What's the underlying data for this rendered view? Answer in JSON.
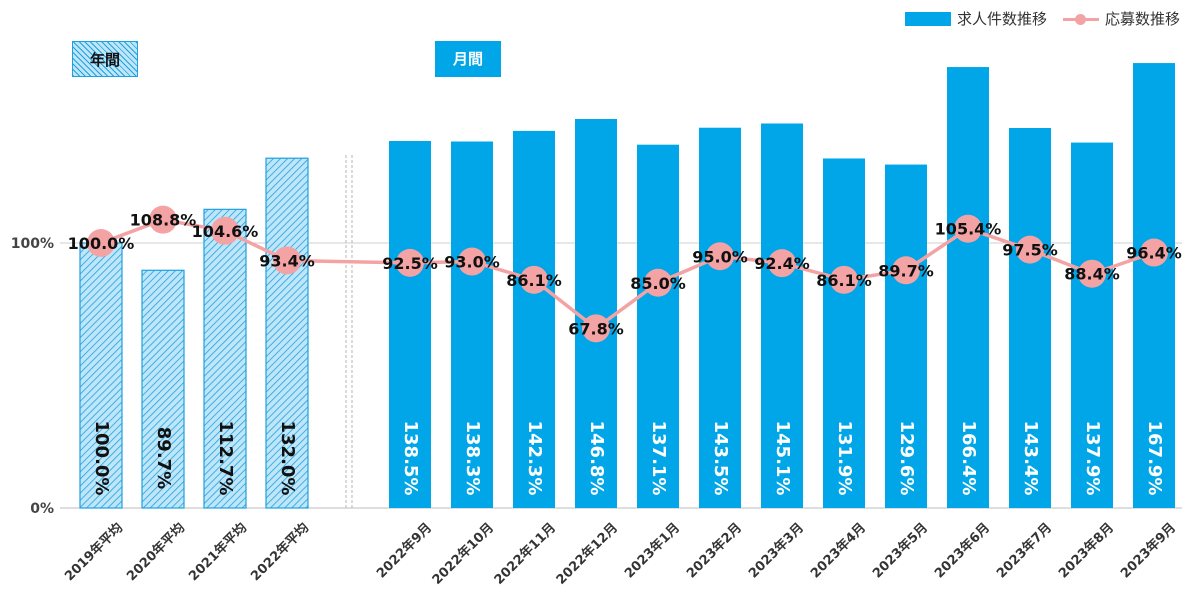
{
  "labels": {
    "annual": "年間",
    "monthly": "月間"
  },
  "legend": {
    "jobs": "求人件数推移",
    "applicants": "応募数推移"
  },
  "colors": {
    "bar": "#00a6e8",
    "hatch": "#1da1e0",
    "line": "#f4a3a5",
    "text": "#111111"
  },
  "chart_data": {
    "type": "bar",
    "categories": [
      "2019年平均",
      "2020年平均",
      "2021年平均",
      "2022年平均",
      "2022年9月",
      "2022年10月",
      "2022年11月",
      "2022年12月",
      "2023年1月",
      "2023年2月",
      "2023年3月",
      "2023年4月",
      "2023年5月",
      "2023年6月",
      "2023年7月",
      "2023年8月",
      "2023年9月"
    ],
    "series": [
      {
        "name": "求人件数推移",
        "type": "bar",
        "values": [
          100.0,
          89.7,
          112.7,
          132.0,
          138.5,
          138.3,
          142.3,
          146.8,
          137.1,
          143.5,
          145.1,
          131.9,
          129.6,
          166.4,
          143.4,
          137.9,
          167.9
        ],
        "labels": [
          "100.0%",
          "89.7%",
          "112.7%",
          "132.0%",
          "138.5%",
          "138.3%",
          "142.3%",
          "146.8%",
          "137.1%",
          "143.5%",
          "145.1%",
          "131.9%",
          "129.6%",
          "166.4%",
          "143.4%",
          "137.9%",
          "167.9%"
        ]
      },
      {
        "name": "応募数推移",
        "type": "line",
        "values": [
          100.0,
          108.8,
          104.6,
          93.4,
          92.5,
          93.0,
          86.1,
          67.8,
          85.0,
          95.0,
          92.4,
          86.1,
          89.7,
          105.4,
          97.5,
          88.4,
          96.4
        ],
        "labels": [
          "100.0%",
          "108.8%",
          "104.6%",
          "93.4%",
          "92.5%",
          "93.0%",
          "86.1%",
          "67.8%",
          "85.0%",
          "95.0%",
          "92.4%",
          "86.1%",
          "89.7%",
          "105.4%",
          "97.5%",
          "88.4%",
          "96.4%"
        ]
      }
    ],
    "groups": [
      {
        "label": "年間",
        "count": 4,
        "style": "hatched"
      },
      {
        "label": "月間",
        "count": 13,
        "style": "solid"
      }
    ],
    "yticks": [
      "0%",
      "100%"
    ],
    "ylim": [
      0,
      170
    ],
    "reference_line": 100,
    "title": "",
    "xlabel": "",
    "ylabel": ""
  }
}
